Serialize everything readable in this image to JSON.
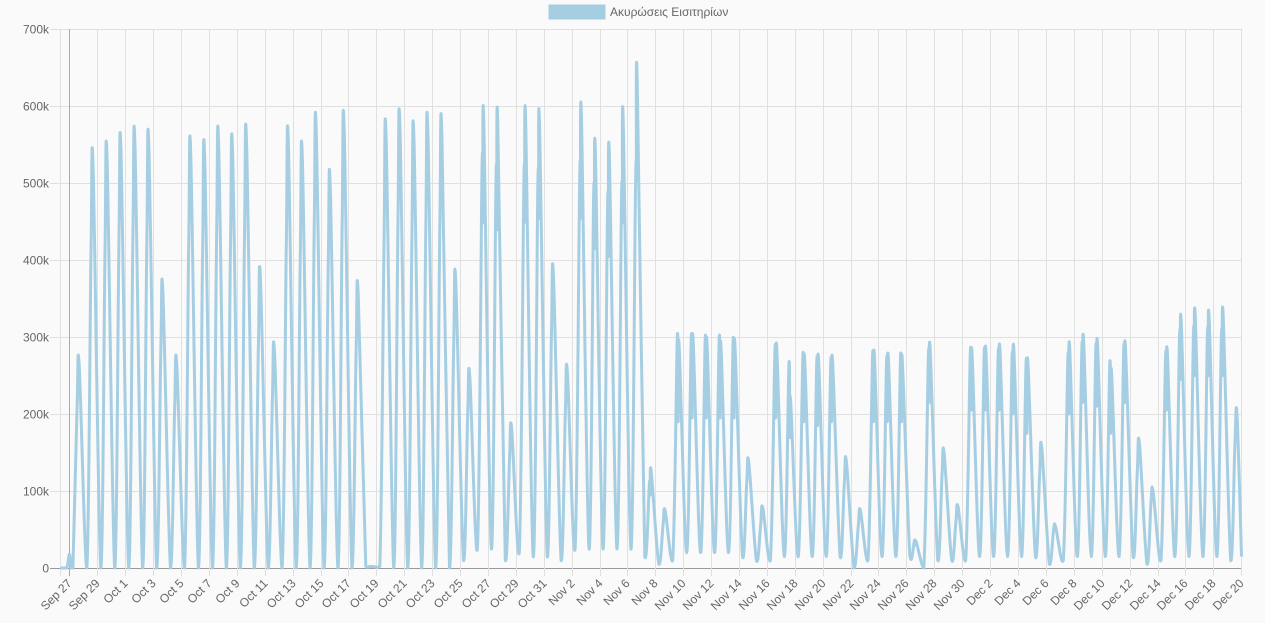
{
  "chart_data": {
    "type": "line",
    "title": "",
    "xlabel": "",
    "ylabel": "",
    "ylim": [
      0,
      700000
    ],
    "y_ticks": [
      "0",
      "100k",
      "200k",
      "300k",
      "400k",
      "500k",
      "600k",
      "700k"
    ],
    "grid": true,
    "legend": {
      "placement": "top-center",
      "entries": [
        "Ακυρώσεις Εισιτηρίων"
      ]
    },
    "x_tick_labels": [
      "Sep 27",
      "Sep 29",
      "Oct 1",
      "Oct 3",
      "Oct 5",
      "Oct 7",
      "Oct 9",
      "Oct 11",
      "Oct 13",
      "Oct 15",
      "Oct 17",
      "Oct 19",
      "Oct 21",
      "Oct 23",
      "Oct 25",
      "Oct 27",
      "Oct 29",
      "Oct 31",
      "Nov 2",
      "Nov 4",
      "Nov 6",
      "Nov 8",
      "Nov 10",
      "Nov 12",
      "Nov 14",
      "Nov 16",
      "Nov 18",
      "Nov 20",
      "Nov 22",
      "Nov 24",
      "Nov 26",
      "Nov 28",
      "Nov 30",
      "Dec 2",
      "Dec 4",
      "Dec 6",
      "Dec 8",
      "Dec 10",
      "Dec 12",
      "Dec 14",
      "Dec 16",
      "Dec 18",
      "Dec 20"
    ],
    "x_unit": "days since Sep 27",
    "y_unit": "thousands",
    "series": [
      {
        "name": "Ακυρώσεις Εισιτηρίων",
        "color": "#a6cee3",
        "lead_in": [
          [
            -0.65,
            0
          ],
          [
            -0.2,
            0
          ],
          [
            0,
            18
          ],
          [
            0.12,
            0
          ]
        ],
        "daily_note": "each day: [low, peak] | [low, shoulder, peak] | [low, peakA, dip, peakB] (thousands)",
        "days": [
          [
            0,
            210,
            263
          ],
          [
            0,
            410,
            520
          ],
          [
            0,
            410,
            530
          ],
          [
            0,
            420,
            540
          ],
          [
            0,
            430,
            547
          ],
          [
            0,
            420,
            545
          ],
          [
            0,
            280,
            358
          ],
          [
            0,
            210,
            263
          ],
          [
            0,
            420,
            535
          ],
          [
            0,
            410,
            532
          ],
          [
            0,
            430,
            547
          ],
          [
            0,
            420,
            538
          ],
          [
            0,
            430,
            550
          ],
          [
            0,
            290,
            374
          ],
          [
            0,
            220,
            280
          ],
          [
            0,
            420,
            550
          ],
          [
            0,
            410,
            530
          ],
          [
            0,
            440,
            565
          ],
          [
            0,
            390,
            493
          ],
          [
            0,
            440,
            568
          ],
          [
            0,
            280,
            356
          ],
          [
            2,
            2,
            2
          ],
          [
            2,
            420,
            560
          ],
          [
            0,
            440,
            570
          ],
          [
            0,
            430,
            555
          ],
          [
            0,
            440,
            565
          ],
          [
            0,
            440,
            563
          ],
          [
            0,
            290,
            371
          ],
          [
            10,
            200,
            248
          ],
          [
            25,
            519,
            449,
            584
          ],
          [
            25,
            504,
            440,
            582
          ],
          [
            10,
            140,
            182
          ],
          [
            20,
            501,
            450,
            583
          ],
          [
            15,
            495,
            455,
            578
          ],
          [
            15,
            300,
            377
          ],
          [
            10,
            200,
            254
          ],
          [
            25,
            506,
            455,
            588
          ],
          [
            25,
            482,
            415,
            543
          ],
          [
            25,
            471,
            405,
            539
          ],
          [
            25,
            478,
            450,
            582
          ],
          [
            25,
            491,
            510,
            634
          ],
          [
            15,
            110,
            95,
            127
          ],
          [
            5,
            55,
            75
          ],
          [
            10,
            300,
            190,
            292
          ],
          [
            20,
            300,
            195,
            300
          ],
          [
            20,
            298,
            195,
            295
          ],
          [
            20,
            298,
            195,
            290
          ],
          [
            20,
            295,
            195,
            293
          ],
          [
            15,
            110,
            137
          ],
          [
            10,
            55,
            79
          ],
          [
            10,
            285,
            195,
            287
          ],
          [
            15,
            264,
            170,
            218
          ],
          [
            15,
            275,
            190,
            273
          ],
          [
            15,
            270,
            185,
            273
          ],
          [
            15,
            268,
            190,
            271
          ],
          [
            15,
            110,
            138
          ],
          [
            0,
            55,
            75
          ],
          [
            10,
            277,
            190,
            278
          ],
          [
            15,
            270,
            190,
            274
          ],
          [
            15,
            274,
            190,
            272
          ],
          [
            15,
            36,
            30,
            34
          ],
          [
            0,
            277,
            215,
            286
          ],
          [
            10,
            120,
            149
          ],
          [
            10,
            60,
            80
          ],
          [
            10,
            280,
            205,
            280
          ],
          [
            15,
            280,
            205,
            282
          ],
          [
            15,
            279,
            205,
            285
          ],
          [
            15,
            275,
            200,
            285
          ],
          [
            15,
            268,
            175,
            269
          ],
          [
            15,
            120,
            157
          ],
          [
            5,
            50,
            53
          ],
          [
            10,
            274,
            200,
            288
          ],
          [
            15,
            287,
            215,
            297
          ],
          [
            15,
            285,
            210,
            292
          ],
          [
            15,
            265,
            175,
            255
          ],
          [
            15,
            284,
            215,
            288
          ],
          [
            15,
            125,
            162
          ],
          [
            5,
            90,
            97
          ],
          [
            10,
            275,
            205,
            281
          ],
          [
            15,
            300,
            245,
            321
          ],
          [
            15,
            305,
            250,
            329
          ],
          [
            15,
            303,
            250,
            326
          ],
          [
            15,
            300,
            250,
            330
          ],
          [
            10,
            160,
            199
          ]
        ],
        "final_value": 15
      }
    ]
  }
}
